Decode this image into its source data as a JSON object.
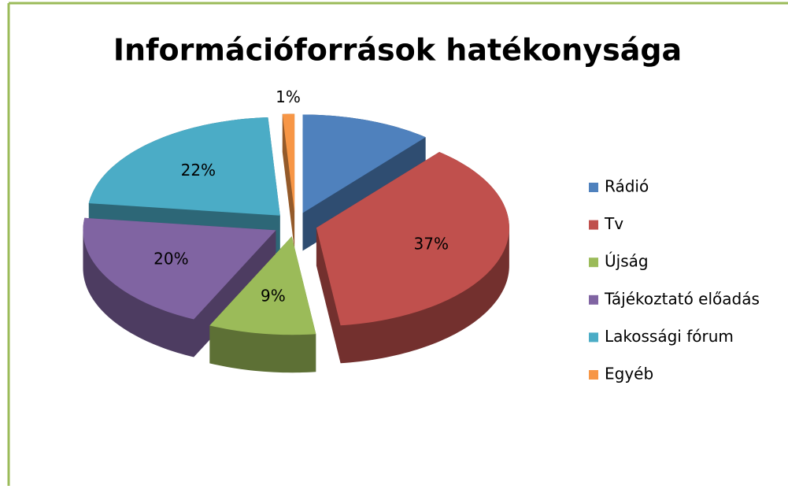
{
  "chart_data": {
    "type": "pie",
    "title": "Információforrások hatékonysága",
    "categories": [
      "Rádió",
      "Tv",
      "Újság",
      "Tájékoztató előadás",
      "Lakossági fórum",
      "Egyéb"
    ],
    "values": [
      11,
      37,
      9,
      20,
      22,
      1
    ],
    "value_labels": [
      null,
      "37%",
      "9%",
      "20%",
      "22%",
      "1%"
    ],
    "colors": [
      "#4f81bd",
      "#c0504d",
      "#9bbb59",
      "#8064a2",
      "#4bacc6",
      "#f79646"
    ],
    "legend": "right"
  }
}
